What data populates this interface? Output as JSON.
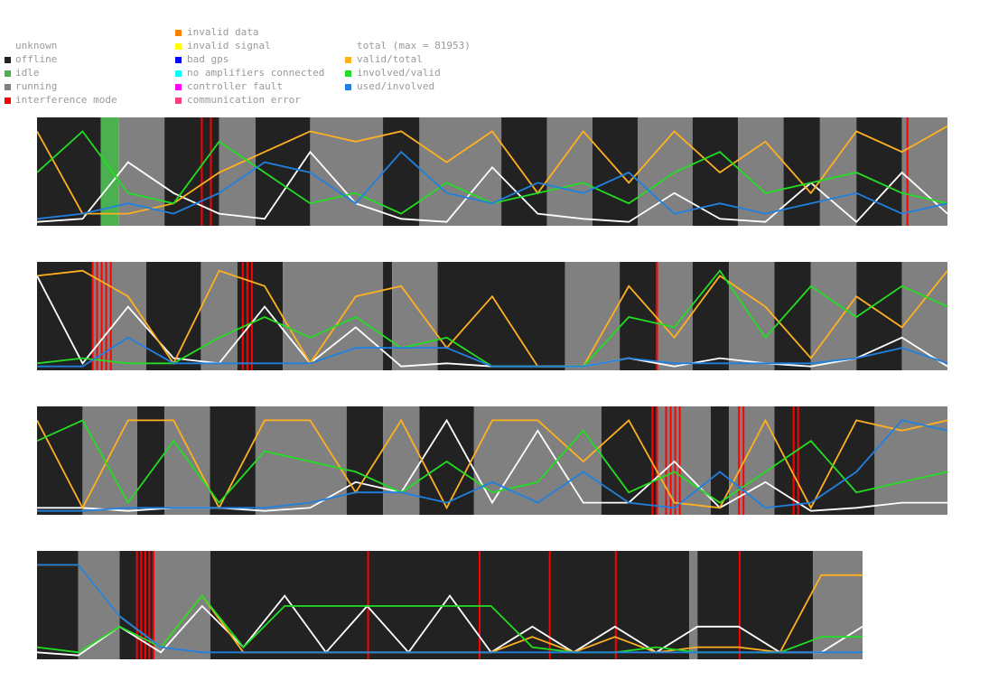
{
  "legend": {
    "state": [
      {
        "label": "unknown",
        "color": ""
      },
      {
        "label": "offline",
        "color": "#222222"
      },
      {
        "label": "idle",
        "color": "#4caf50"
      },
      {
        "label": "running",
        "color": "#808080"
      },
      {
        "label": "interference mode",
        "color": "#ff0000"
      }
    ],
    "error": [
      {
        "label": "invalid data",
        "color": "#ff8000"
      },
      {
        "label": "invalid signal",
        "color": "#ffff00"
      },
      {
        "label": "bad gps",
        "color": "#0000ff"
      },
      {
        "label": "no amplifiers connected",
        "color": "#00ffff"
      },
      {
        "label": "controller fault",
        "color": "#ff00ff"
      },
      {
        "label": "communication error",
        "color": "#ff4080"
      }
    ],
    "lines": [
      {
        "label": "total (max = 81953)",
        "color": "#ffffff"
      },
      {
        "label": "valid/total",
        "color": "#ffb020"
      },
      {
        "label": "involved/valid",
        "color": "#22dd22"
      },
      {
        "label": "used/involved",
        "color": "#2080e0"
      }
    ]
  },
  "chart_data": {
    "type": "area",
    "title": "",
    "total_max": 81953,
    "strips": [
      {
        "row": 1,
        "segments": [
          {
            "state": "offline",
            "from": 0.0,
            "to": 0.07
          },
          {
            "state": "idle",
            "from": 0.07,
            "to": 0.09
          },
          {
            "state": "running",
            "from": 0.09,
            "to": 0.14
          },
          {
            "state": "offline",
            "from": 0.14,
            "to": 0.2
          },
          {
            "state": "running",
            "from": 0.2,
            "to": 0.24
          },
          {
            "state": "offline",
            "from": 0.24,
            "to": 0.3
          },
          {
            "state": "running",
            "from": 0.3,
            "to": 0.38
          },
          {
            "state": "offline",
            "from": 0.38,
            "to": 0.42
          },
          {
            "state": "running",
            "from": 0.42,
            "to": 0.51
          },
          {
            "state": "offline",
            "from": 0.51,
            "to": 0.56
          },
          {
            "state": "running",
            "from": 0.56,
            "to": 0.61
          },
          {
            "state": "offline",
            "from": 0.61,
            "to": 0.66
          },
          {
            "state": "running",
            "from": 0.66,
            "to": 0.72
          },
          {
            "state": "offline",
            "from": 0.72,
            "to": 0.77
          },
          {
            "state": "running",
            "from": 0.77,
            "to": 0.82
          },
          {
            "state": "offline",
            "from": 0.82,
            "to": 0.86
          },
          {
            "state": "running",
            "from": 0.86,
            "to": 0.9
          },
          {
            "state": "offline",
            "from": 0.9,
            "to": 0.95
          },
          {
            "state": "running",
            "from": 0.95,
            "to": 1.0
          }
        ],
        "interference": [
          0.18,
          0.19,
          0.955
        ],
        "series": {
          "total": [
            0.02,
            0.05,
            0.6,
            0.3,
            0.1,
            0.05,
            0.7,
            0.2,
            0.05,
            0.02,
            0.55,
            0.1,
            0.05,
            0.02,
            0.3,
            0.05,
            0.02,
            0.4,
            0.02,
            0.5,
            0.1
          ],
          "valid": [
            0.9,
            0.1,
            0.1,
            0.2,
            0.5,
            0.7,
            0.9,
            0.8,
            0.9,
            0.6,
            0.9,
            0.3,
            0.9,
            0.4,
            0.9,
            0.5,
            0.8,
            0.3,
            0.9,
            0.7,
            0.95
          ],
          "involved": [
            0.5,
            0.9,
            0.3,
            0.2,
            0.8,
            0.5,
            0.2,
            0.3,
            0.1,
            0.4,
            0.2,
            0.3,
            0.4,
            0.2,
            0.5,
            0.7,
            0.3,
            0.4,
            0.5,
            0.3,
            0.2
          ],
          "used": [
            0.05,
            0.1,
            0.2,
            0.1,
            0.3,
            0.6,
            0.5,
            0.2,
            0.7,
            0.3,
            0.2,
            0.4,
            0.3,
            0.5,
            0.1,
            0.2,
            0.1,
            0.2,
            0.3,
            0.1,
            0.2
          ]
        }
      },
      {
        "row": 2,
        "segments": [
          {
            "state": "offline",
            "from": 0.0,
            "to": 0.06
          },
          {
            "state": "running",
            "from": 0.06,
            "to": 0.12
          },
          {
            "state": "offline",
            "from": 0.12,
            "to": 0.18
          },
          {
            "state": "running",
            "from": 0.18,
            "to": 0.22
          },
          {
            "state": "offline",
            "from": 0.22,
            "to": 0.27
          },
          {
            "state": "running",
            "from": 0.27,
            "to": 0.38
          },
          {
            "state": "offline",
            "from": 0.38,
            "to": 0.39
          },
          {
            "state": "running",
            "from": 0.39,
            "to": 0.44
          },
          {
            "state": "offline",
            "from": 0.44,
            "to": 0.58
          },
          {
            "state": "running",
            "from": 0.58,
            "to": 0.64
          },
          {
            "state": "offline",
            "from": 0.64,
            "to": 0.68
          },
          {
            "state": "running",
            "from": 0.68,
            "to": 0.72
          },
          {
            "state": "offline",
            "from": 0.72,
            "to": 0.76
          },
          {
            "state": "running",
            "from": 0.76,
            "to": 0.81
          },
          {
            "state": "offline",
            "from": 0.81,
            "to": 0.85
          },
          {
            "state": "running",
            "from": 0.85,
            "to": 0.9
          },
          {
            "state": "offline",
            "from": 0.9,
            "to": 0.95
          },
          {
            "state": "running",
            "from": 0.95,
            "to": 1.0
          }
        ],
        "interference": [
          0.06,
          0.065,
          0.07,
          0.075,
          0.08,
          0.225,
          0.23,
          0.235,
          0.68
        ],
        "series": {
          "total": [
            0.9,
            0.05,
            0.6,
            0.1,
            0.05,
            0.6,
            0.05,
            0.4,
            0.02,
            0.05,
            0.02,
            0.02,
            0.02,
            0.1,
            0.02,
            0.1,
            0.05,
            0.02,
            0.1,
            0.3,
            0.02
          ],
          "valid": [
            0.9,
            0.95,
            0.7,
            0.05,
            0.95,
            0.8,
            0.05,
            0.7,
            0.8,
            0.2,
            0.7,
            0.02,
            0.02,
            0.8,
            0.3,
            0.9,
            0.6,
            0.1,
            0.7,
            0.4,
            0.95
          ],
          "involved": [
            0.05,
            0.1,
            0.05,
            0.05,
            0.3,
            0.5,
            0.3,
            0.5,
            0.2,
            0.3,
            0.02,
            0.02,
            0.02,
            0.5,
            0.4,
            0.95,
            0.3,
            0.8,
            0.5,
            0.8,
            0.6
          ],
          "used": [
            0.02,
            0.02,
            0.3,
            0.05,
            0.05,
            0.05,
            0.05,
            0.2,
            0.2,
            0.2,
            0.02,
            0.02,
            0.02,
            0.1,
            0.05,
            0.05,
            0.05,
            0.05,
            0.1,
            0.2,
            0.05
          ]
        }
      },
      {
        "row": 3,
        "segments": [
          {
            "state": "offline",
            "from": 0.0,
            "to": 0.05
          },
          {
            "state": "running",
            "from": 0.05,
            "to": 0.11
          },
          {
            "state": "offline",
            "from": 0.11,
            "to": 0.14
          },
          {
            "state": "running",
            "from": 0.14,
            "to": 0.19
          },
          {
            "state": "offline",
            "from": 0.19,
            "to": 0.24
          },
          {
            "state": "running",
            "from": 0.24,
            "to": 0.34
          },
          {
            "state": "offline",
            "from": 0.34,
            "to": 0.38
          },
          {
            "state": "running",
            "from": 0.38,
            "to": 0.42
          },
          {
            "state": "offline",
            "from": 0.42,
            "to": 0.48
          },
          {
            "state": "running",
            "from": 0.48,
            "to": 0.62
          },
          {
            "state": "offline",
            "from": 0.62,
            "to": 0.68
          },
          {
            "state": "running",
            "from": 0.68,
            "to": 0.74
          },
          {
            "state": "offline",
            "from": 0.74,
            "to": 0.76
          },
          {
            "state": "running",
            "from": 0.76,
            "to": 0.81
          },
          {
            "state": "offline",
            "from": 0.81,
            "to": 0.92
          },
          {
            "state": "running",
            "from": 0.92,
            "to": 1.0
          }
        ],
        "interference": [
          0.675,
          0.68,
          0.69,
          0.695,
          0.7,
          0.705,
          0.77,
          0.775,
          0.83,
          0.835
        ],
        "series": {
          "total": [
            0.05,
            0.05,
            0.02,
            0.05,
            0.05,
            0.02,
            0.05,
            0.3,
            0.2,
            0.9,
            0.1,
            0.8,
            0.1,
            0.1,
            0.5,
            0.05,
            0.3,
            0.02,
            0.05,
            0.1,
            0.1
          ],
          "valid": [
            0.9,
            0.05,
            0.9,
            0.9,
            0.05,
            0.9,
            0.9,
            0.2,
            0.9,
            0.05,
            0.9,
            0.9,
            0.5,
            0.9,
            0.1,
            0.05,
            0.9,
            0.05,
            0.9,
            0.8,
            0.9
          ],
          "involved": [
            0.7,
            0.9,
            0.1,
            0.7,
            0.1,
            0.6,
            0.5,
            0.4,
            0.2,
            0.5,
            0.2,
            0.3,
            0.8,
            0.2,
            0.4,
            0.1,
            0.4,
            0.7,
            0.2,
            0.3,
            0.4
          ],
          "used": [
            0.02,
            0.02,
            0.05,
            0.05,
            0.05,
            0.05,
            0.1,
            0.2,
            0.2,
            0.1,
            0.3,
            0.1,
            0.4,
            0.1,
            0.05,
            0.4,
            0.05,
            0.1,
            0.4,
            0.9,
            0.8
          ]
        }
      },
      {
        "row": 4,
        "segments": [
          {
            "state": "offline",
            "from": 0.0,
            "to": 0.05
          },
          {
            "state": "running",
            "from": 0.05,
            "to": 0.1
          },
          {
            "state": "offline",
            "from": 0.1,
            "to": 0.14
          },
          {
            "state": "running",
            "from": 0.14,
            "to": 0.21
          },
          {
            "state": "offline",
            "from": 0.21,
            "to": 0.79
          },
          {
            "state": "running",
            "from": 0.79,
            "to": 0.8
          },
          {
            "state": "offline",
            "from": 0.8,
            "to": 0.94
          },
          {
            "state": "running",
            "from": 0.94,
            "to": 1.0
          }
        ],
        "interference": [
          0.12,
          0.125,
          0.13,
          0.135,
          0.14,
          0.4,
          0.535,
          0.62,
          0.7,
          0.85
        ],
        "series": {
          "total": [
            0.05,
            0.02,
            0.3,
            0.05,
            0.5,
            0.1,
            0.6,
            0.05,
            0.5,
            0.05,
            0.6,
            0.05,
            0.3,
            0.05,
            0.3,
            0.05,
            0.3,
            0.3,
            0.05,
            0.05,
            0.3
          ],
          "valid": [
            0.9,
            0.9,
            0.4,
            0.1,
            0.6,
            0.05,
            0.05,
            0.05,
            0.05,
            0.05,
            0.05,
            0.05,
            0.2,
            0.05,
            0.2,
            0.05,
            0.1,
            0.1,
            0.05,
            0.8,
            0.8
          ],
          "involved": [
            0.1,
            0.05,
            0.3,
            0.1,
            0.6,
            0.1,
            0.5,
            0.5,
            0.5,
            0.5,
            0.5,
            0.5,
            0.1,
            0.05,
            0.05,
            0.1,
            0.05,
            0.05,
            0.05,
            0.2,
            0.2
          ],
          "used": [
            0.9,
            0.9,
            0.4,
            0.1,
            0.05,
            0.05,
            0.05,
            0.05,
            0.05,
            0.05,
            0.05,
            0.05,
            0.05,
            0.05,
            0.05,
            0.05,
            0.05,
            0.05,
            0.05,
            0.05,
            0.05
          ]
        }
      }
    ]
  }
}
